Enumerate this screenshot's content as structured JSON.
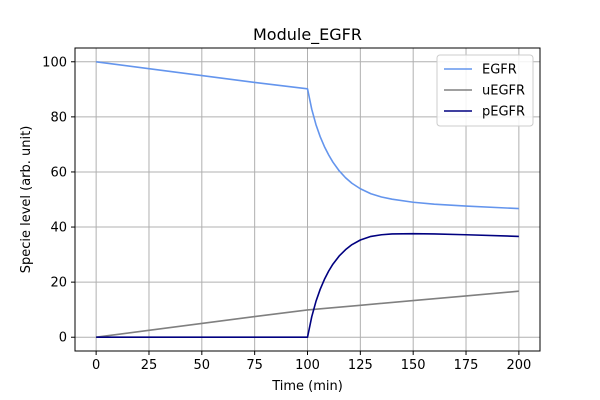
{
  "chart_data": {
    "type": "line",
    "title": "Module_EGFR",
    "xlabel": "Time (min)",
    "ylabel": "Specie level (arb. unit)",
    "xlim": [
      -10,
      210
    ],
    "ylim": [
      -5,
      105
    ],
    "xticks": [
      0,
      25,
      50,
      75,
      100,
      125,
      150,
      175,
      200
    ],
    "yticks": [
      0,
      20,
      40,
      60,
      80,
      100
    ],
    "grid": true,
    "legend_position": "top-right",
    "series": [
      {
        "name": "EGFR",
        "color": "#6495ed",
        "x": [
          0,
          25,
          50,
          75,
          100,
          102,
          104,
          106,
          108,
          110,
          112,
          115,
          118,
          121,
          125,
          130,
          135,
          140,
          150,
          160,
          175,
          200
        ],
        "y": [
          100,
          97.5,
          95,
          92.5,
          90.2,
          82.8,
          77.2,
          72.8,
          69.2,
          66.2,
          63.6,
          60.4,
          57.9,
          55.9,
          53.9,
          52.1,
          50.9,
          50.1,
          49.0,
          48.3,
          47.6,
          46.7
        ]
      },
      {
        "name": "uEGFR",
        "color": "#808080",
        "x": [
          0,
          25,
          50,
          75,
          100,
          125,
          150,
          175,
          200
        ],
        "y": [
          0,
          2.5,
          5,
          7.5,
          9.9,
          11.6,
          13.3,
          15.0,
          16.7
        ]
      },
      {
        "name": "pEGFR",
        "color": "#000080",
        "x": [
          0,
          25,
          50,
          75,
          100,
          102,
          104,
          106,
          108,
          110,
          112,
          115,
          118,
          121,
          125,
          130,
          135,
          140,
          150,
          160,
          175,
          200
        ],
        "y": [
          0,
          0,
          0,
          0,
          0,
          7.4,
          13.0,
          17.4,
          21.0,
          24.0,
          26.5,
          29.5,
          31.8,
          33.6,
          35.3,
          36.6,
          37.2,
          37.5,
          37.6,
          37.5,
          37.2,
          36.6
        ]
      }
    ]
  }
}
